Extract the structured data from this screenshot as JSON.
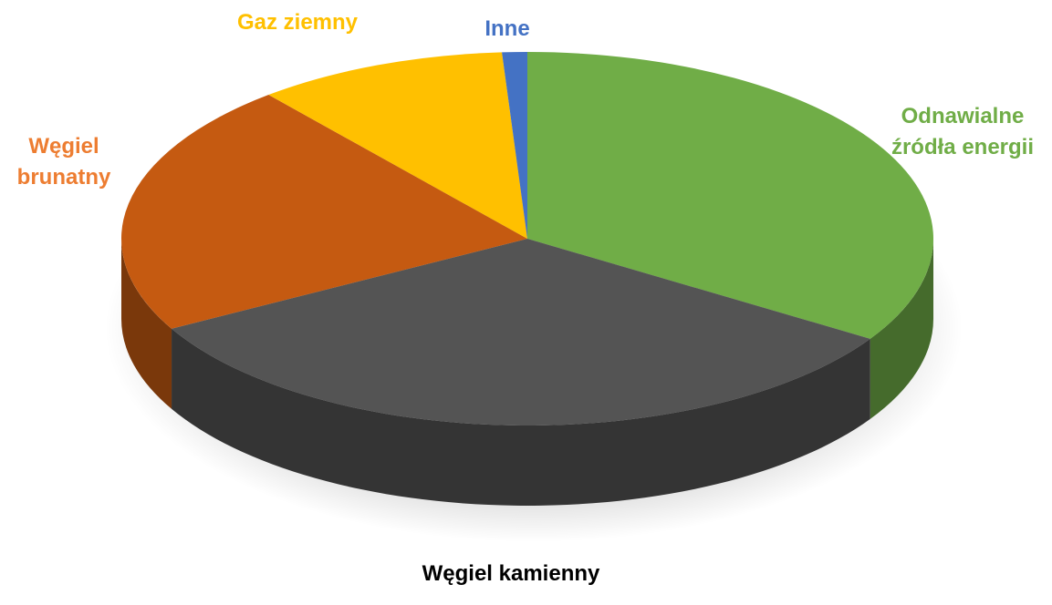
{
  "chart_data": {
    "type": "pie3d",
    "categories": [
      "Odnawialne źródła energii",
      "Węgiel kamienny",
      "Węgiel brunatny",
      "Gaz ziemny",
      "Inne"
    ],
    "values": [
      34,
      33,
      22,
      10,
      1
    ],
    "colors": [
      "#70ad47",
      "#545454",
      "#c55a11",
      "#ffc000",
      "#4472c4"
    ],
    "label_colors": [
      "#70ad47",
      "#000000",
      "#ed7d31",
      "#ffc000",
      "#4472c4"
    ]
  }
}
